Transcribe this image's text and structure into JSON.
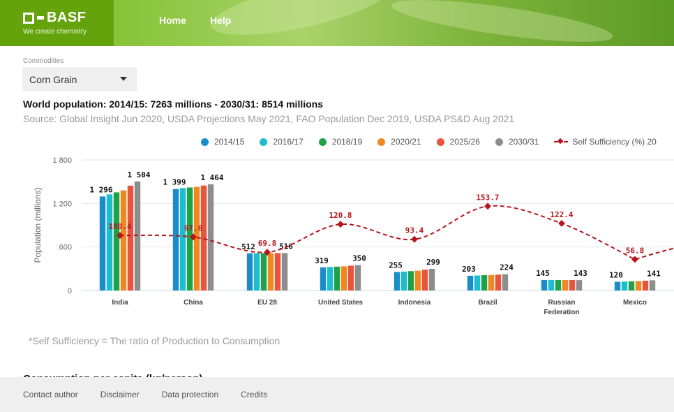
{
  "header": {
    "logo_text": "BASF",
    "logo_tagline": "We create chemistry",
    "nav": [
      "Home",
      "Help"
    ],
    "brand_color": "#65a30d"
  },
  "commodities": {
    "label": "Commodities",
    "selected": "Corn Grain"
  },
  "title": "World population: 2014/15: 7263 millions - 2030/31: 8514 millions",
  "source": "Source: Global Insight Jun 2020, USDA Projections May 2021, FAO Population Dec 2019, USDA PS&D Aug 2021",
  "legend": {
    "series": [
      {
        "name": "2014/15",
        "color": "#1a8dc8"
      },
      {
        "name": "2016/17",
        "color": "#1ebccf"
      },
      {
        "name": "2018/19",
        "color": "#1fa14a"
      },
      {
        "name": "2020/21",
        "color": "#f0871f"
      },
      {
        "name": "2025/26",
        "color": "#e8543c"
      },
      {
        "name": "2030/31",
        "color": "#8d8d8d"
      }
    ],
    "line_label": "Self Sufficiency (%) 20"
  },
  "chart_data": {
    "type": "bar",
    "ylabel": "Population (millions)",
    "ylim": [
      0,
      1800
    ],
    "yticks": [
      "0",
      "600",
      "1 200",
      "1 800"
    ],
    "categories": [
      "India",
      "China",
      "EU 28",
      "United States",
      "Indonesia",
      "Brazil",
      "Russian Federation",
      "Mexico"
    ],
    "series": [
      {
        "name": "2014/15",
        "values": [
          1296,
          1399,
          512,
          319,
          255,
          203,
          145,
          120
        ]
      },
      {
        "name": "2016/17",
        "values": [
          1325,
          1412,
          514,
          324,
          261,
          207,
          145,
          123
        ]
      },
      {
        "name": "2018/19",
        "values": [
          1353,
          1420,
          515,
          329,
          267,
          211,
          144,
          126
        ]
      },
      {
        "name": "2020/21",
        "values": [
          1380,
          1428,
          515,
          333,
          273,
          214,
          144,
          129
        ]
      },
      {
        "name": "2025/26",
        "values": [
          1445,
          1447,
          516,
          342,
          287,
          219,
          144,
          135
        ]
      },
      {
        "name": "2030/31",
        "values": [
          1504,
          1464,
          516,
          350,
          299,
          224,
          143,
          141
        ]
      }
    ],
    "bar_labels_first": [
      "1 296",
      "1 399",
      "512",
      "319",
      "255",
      "203",
      "145",
      "120"
    ],
    "bar_labels_last": [
      "1 504",
      "1 464",
      "516",
      "350",
      "299",
      "224",
      "143",
      "141"
    ],
    "line": {
      "values": [
        100.4,
        97.6,
        69.8,
        120.8,
        93.4,
        153.7,
        122.4,
        56.8
      ],
      "labels": [
        "100.4",
        "97.6",
        "69.8",
        "120.8",
        "93.4",
        "153.7",
        "122.4",
        "56.8"
      ],
      "color": "#b5161d"
    },
    "grid": true
  },
  "footnote": "*Self Sufficiency = The ratio of Production to Consumption",
  "next_heading": "Consumption per capita (kg/person)",
  "footer": [
    "Contact author",
    "Disclaimer",
    "Data protection",
    "Credits"
  ]
}
